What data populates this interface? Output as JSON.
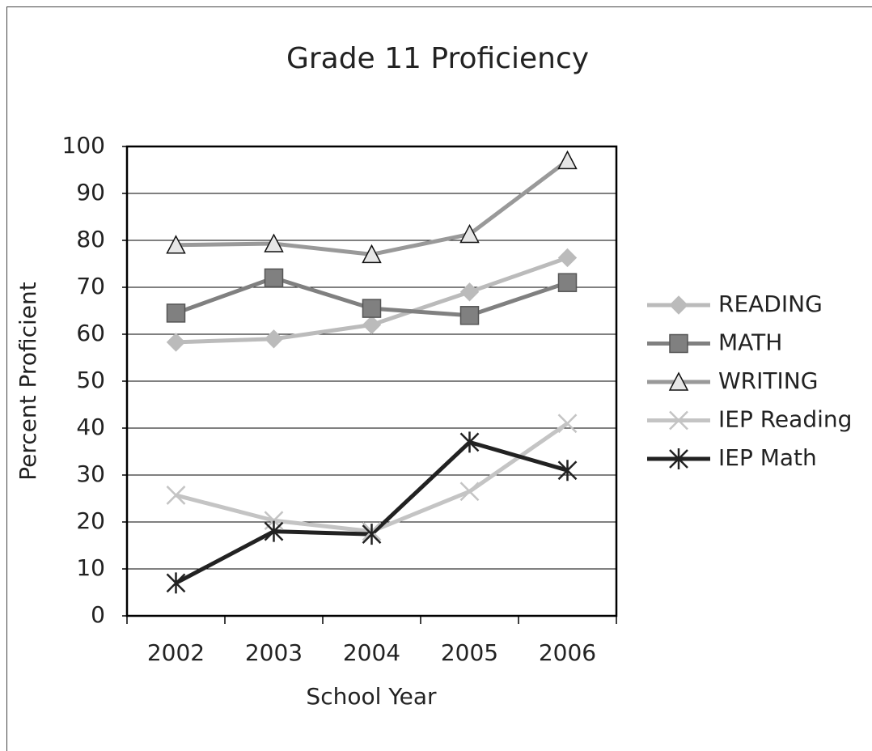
{
  "chart_data": {
    "type": "line",
    "title": "Grade 11 Proficiency",
    "xlabel": "School Year",
    "ylabel": "Percent Proficient",
    "categories": [
      "2002",
      "2003",
      "2004",
      "2005",
      "2006"
    ],
    "series": [
      {
        "name": "READING",
        "color": "#bbbbbb",
        "marker": "diamond",
        "values": [
          58.3,
          59,
          62,
          69,
          76.3
        ]
      },
      {
        "name": "MATH",
        "color": "#808080",
        "marker": "square",
        "values": [
          64.5,
          72,
          65.5,
          64,
          71
        ]
      },
      {
        "name": "WRITING",
        "color": "#999999",
        "marker": "triangle",
        "values": [
          79,
          79.3,
          77,
          81.3,
          97
        ]
      },
      {
        "name": "IEP Reading",
        "color": "#c4c4c4",
        "marker": "x",
        "values": [
          25.7,
          20.3,
          18,
          26.5,
          41
        ]
      },
      {
        "name": "IEP Math",
        "color": "#222222",
        "marker": "star",
        "values": [
          7,
          18,
          17.4,
          37,
          31
        ]
      }
    ],
    "ylim": [
      0,
      100
    ],
    "yticks": [
      0,
      10,
      20,
      30,
      40,
      50,
      60,
      70,
      80,
      90,
      100
    ],
    "grid": true,
    "legend": "right"
  }
}
